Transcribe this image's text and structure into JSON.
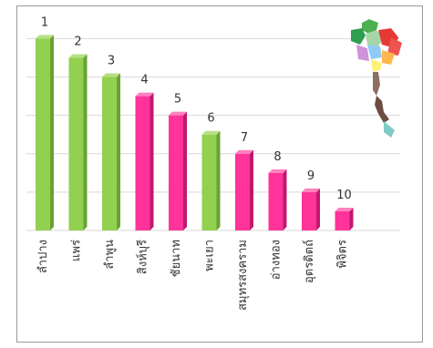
{
  "chart_data": {
    "type": "bar",
    "categories": [
      "ลำปาง",
      "แพร่",
      "ลำพูน",
      "สิงห์บุรี",
      "ชัยนาท",
      "พะเยา",
      "สมุทรสงคราม",
      "อ่างทอง",
      "อุตรดิตถ์",
      "พิจิตร"
    ],
    "values": [
      10,
      9,
      8,
      7,
      6,
      5,
      4,
      3,
      2,
      1
    ],
    "rank_labels": [
      "1",
      "2",
      "3",
      "4",
      "5",
      "6",
      "7",
      "8",
      "9",
      "10"
    ],
    "ylim": [
      0,
      10.4
    ],
    "grid": true,
    "colors": {
      "green_face": "#92d050",
      "green_top": "#b6e084",
      "green_side": "#6aa233",
      "pink_face": "#ff3399",
      "pink_top": "#ff80bf",
      "pink_side": "#c2186f",
      "grid": "#d9d9d9"
    },
    "bar_colors": [
      "green",
      "green",
      "green",
      "pink",
      "pink",
      "green",
      "pink",
      "pink",
      "pink",
      "pink"
    ],
    "decoration": "thailand-region-map-icon"
  }
}
